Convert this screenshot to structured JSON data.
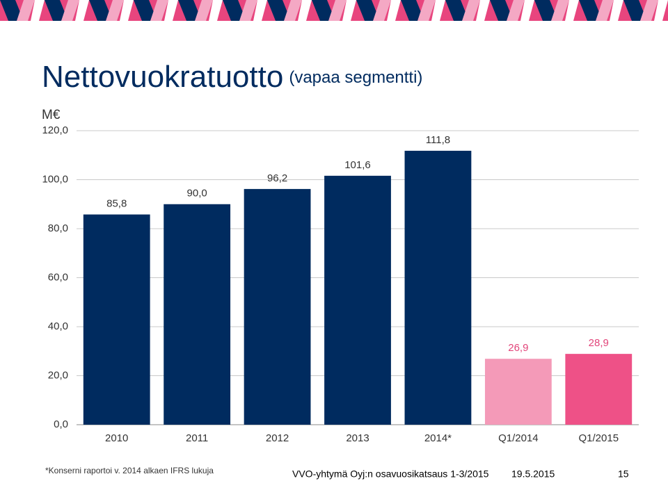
{
  "chart_data": {
    "type": "bar",
    "title": "Nettovuokratuotto",
    "subtitle": "(vapaa segmentti)",
    "y_label": "M€",
    "categories": [
      "2010",
      "2011",
      "2012",
      "2013",
      "2014*",
      "Q1/2014",
      "Q1/2015"
    ],
    "values": [
      85.8,
      90.0,
      96.2,
      101.6,
      111.8,
      26.9,
      28.9
    ],
    "value_labels": [
      "85,8",
      "90,0",
      "96,2",
      "101,6",
      "111,8",
      "26,9",
      "28,9"
    ],
    "colors": [
      "#002b5f",
      "#002b5f",
      "#002b5f",
      "#002b5f",
      "#002b5f",
      "#f49ab8",
      "#ee5187"
    ],
    "label_colors": [
      "#333333",
      "#333333",
      "#333333",
      "#333333",
      "#333333",
      "#e2457a",
      "#e2457a"
    ],
    "ylim": [
      0,
      120
    ],
    "yticks": [
      {
        "value": 0,
        "label": "0,0"
      },
      {
        "value": 20,
        "label": "20,0"
      },
      {
        "value": 40,
        "label": "40,0"
      },
      {
        "value": 60,
        "label": "60,0"
      },
      {
        "value": 80,
        "label": "80,0"
      },
      {
        "value": 100,
        "label": "100,0"
      },
      {
        "value": 120,
        "label": "120,0"
      }
    ],
    "grid": true
  },
  "footer": {
    "note": "*Konserni raportoi v. 2014 alkaen IFRS lukuja",
    "text": "VVO-yhtymä Oyj:n osavuosikatsaus 1-3/2015",
    "date": "19.5.2015",
    "page": "15"
  }
}
